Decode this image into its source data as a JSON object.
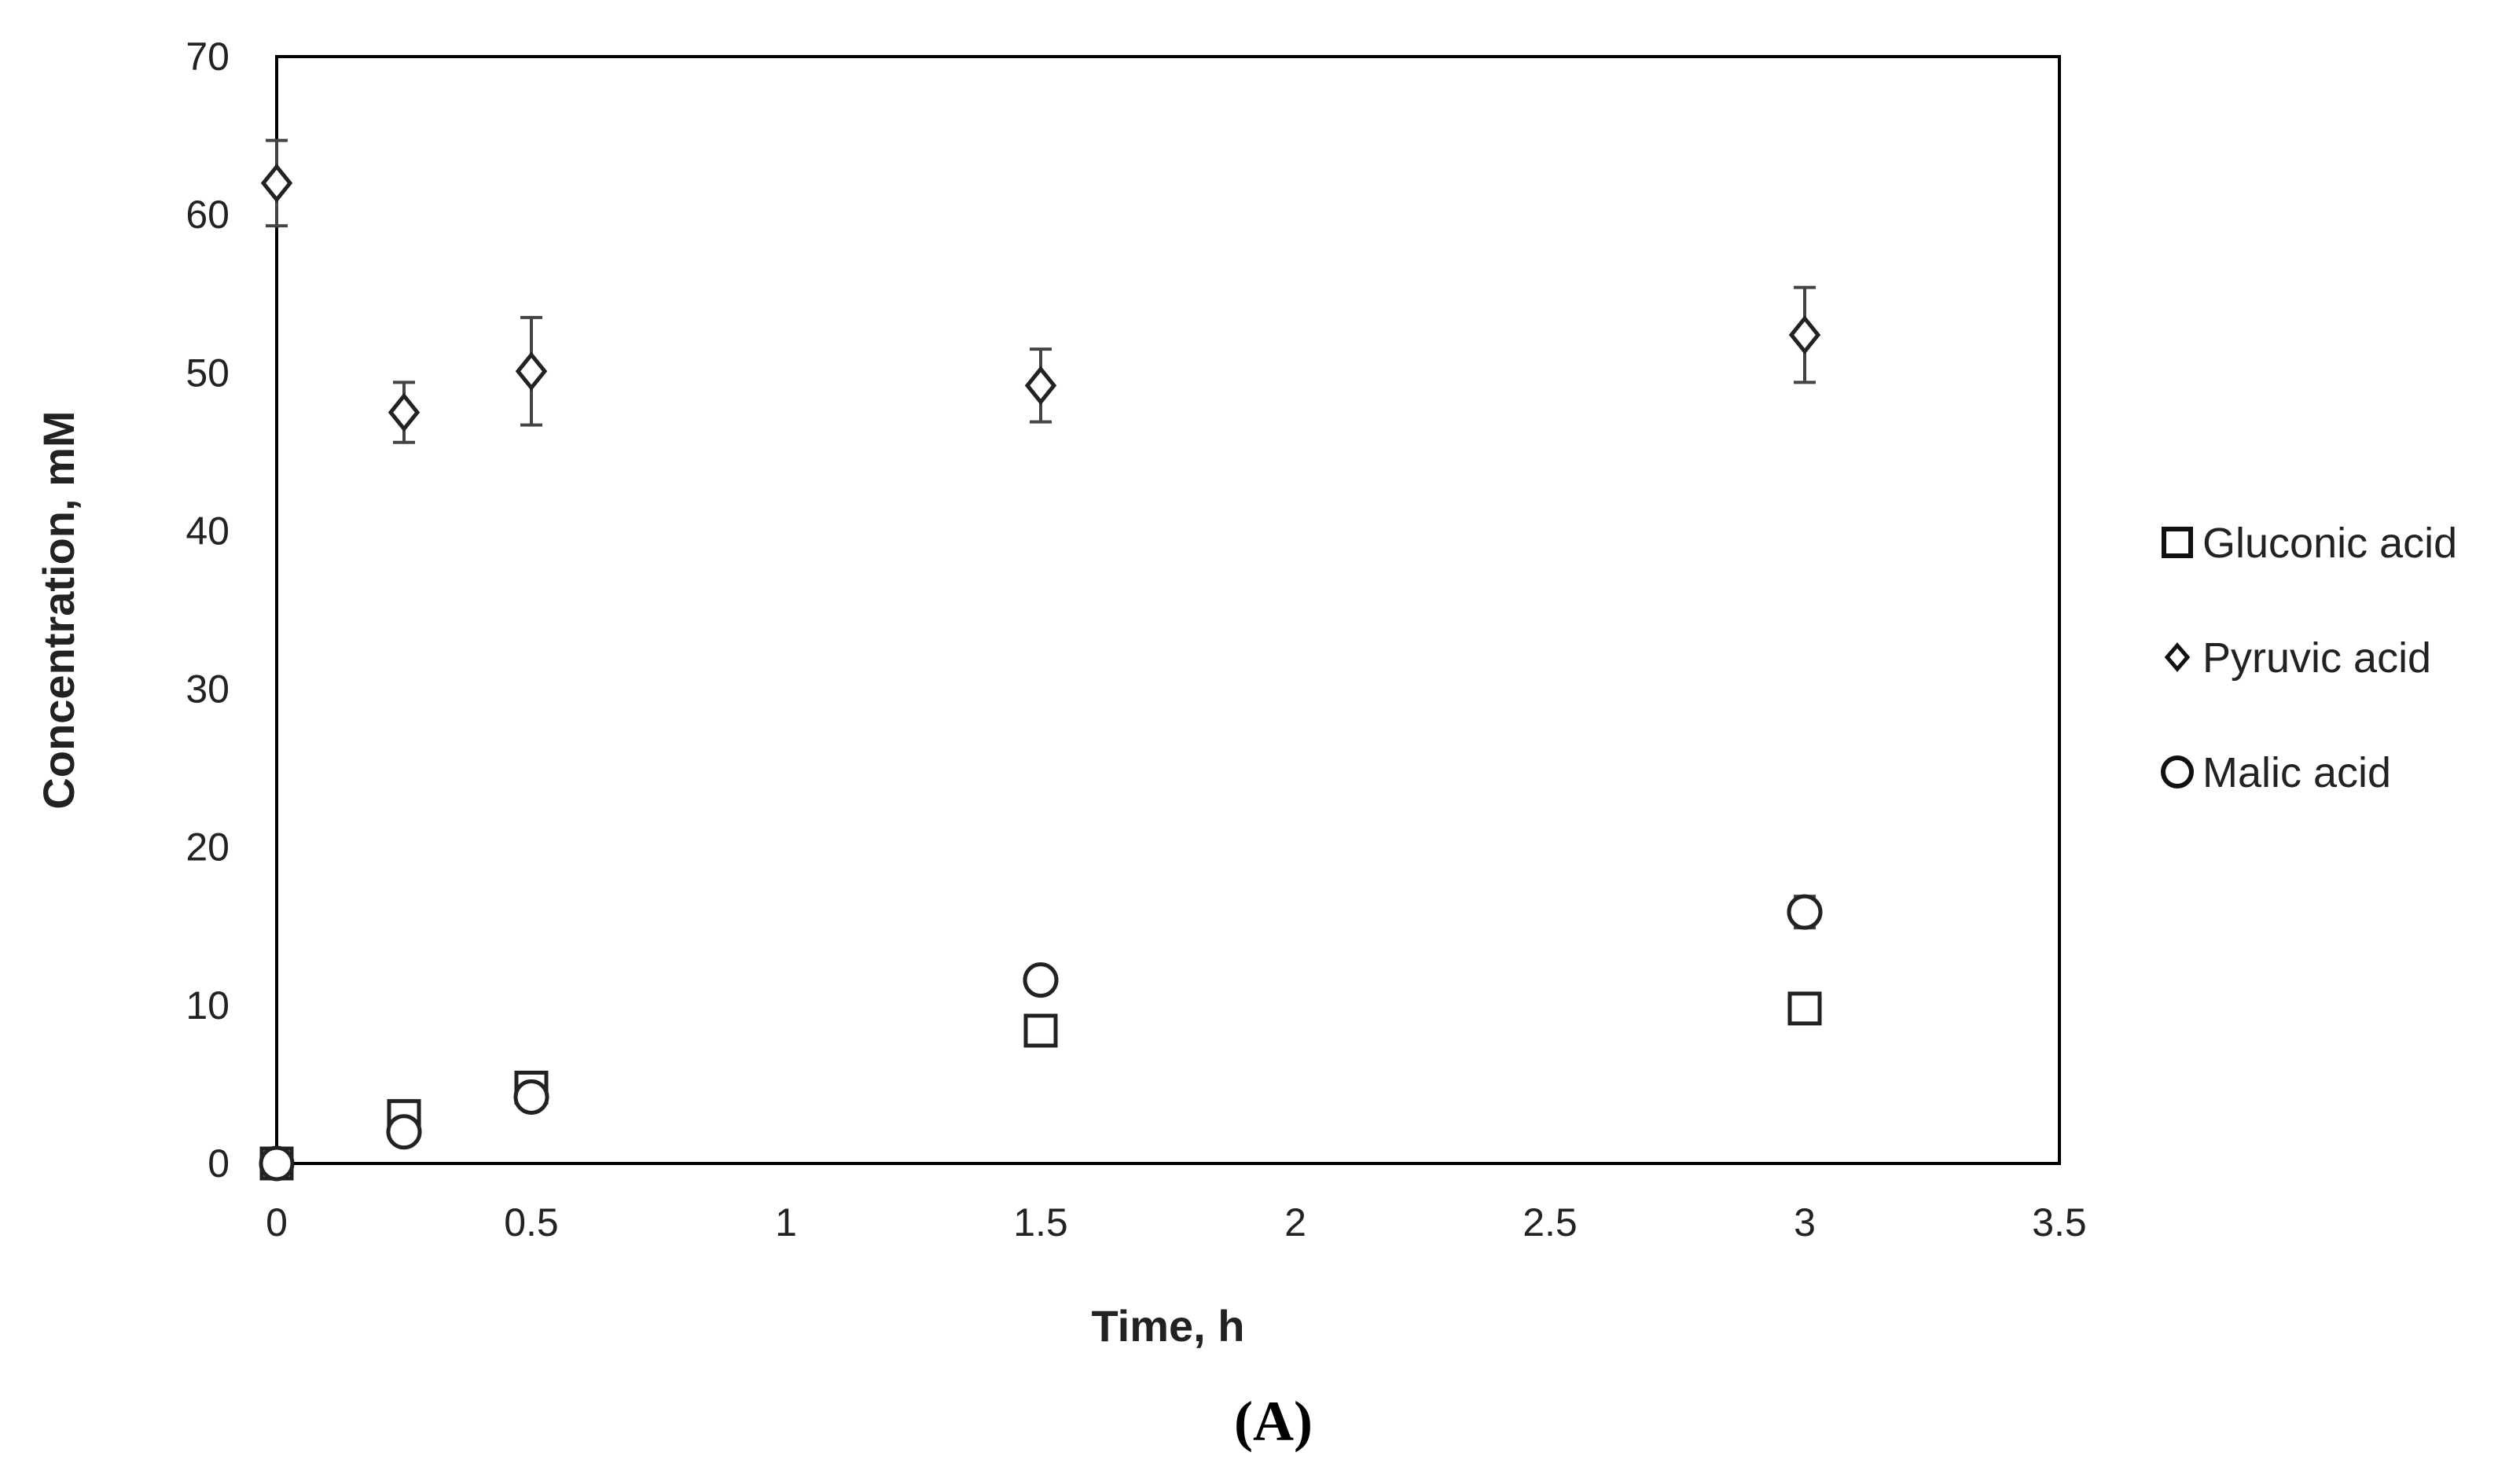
{
  "chart_data": {
    "type": "scatter",
    "title": "",
    "xlabel": "Time, h",
    "ylabel": "Concentration, mM",
    "panel_label": "(A)",
    "xlim": [
      0,
      3.5
    ],
    "ylim": [
      0,
      70
    ],
    "x_ticks": [
      "0",
      "0.5",
      "1",
      "1.5",
      "2",
      "2.5",
      "3",
      "3.5"
    ],
    "y_ticks": [
      "0",
      "10",
      "20",
      "30",
      "40",
      "50",
      "60",
      "70"
    ],
    "grid": false,
    "legend_position": "right",
    "series": [
      {
        "name": "Gluconic acid",
        "marker": "square",
        "x": [
          0,
          0.25,
          0.5,
          1.5,
          3
        ],
        "y": [
          0,
          3,
          4.8,
          8.4,
          9.8
        ],
        "error": [
          0.2,
          0.3,
          0.4,
          0.6,
          0.8
        ]
      },
      {
        "name": "Pyruvic acid",
        "marker": "diamond",
        "x": [
          0,
          0.25,
          0.5,
          1.5,
          3
        ],
        "y": [
          62,
          47.5,
          50.1,
          49.2,
          52.4
        ],
        "error": [
          2.7,
          1.9,
          3.4,
          2.3,
          3
        ]
      },
      {
        "name": "Malic acid",
        "marker": "circle",
        "x": [
          0,
          0.25,
          0.5,
          1.5,
          3
        ],
        "y": [
          0,
          2,
          4.2,
          11.6,
          15.9
        ],
        "error": [
          0.2,
          0.3,
          0.4,
          0.6,
          1
        ]
      }
    ]
  }
}
